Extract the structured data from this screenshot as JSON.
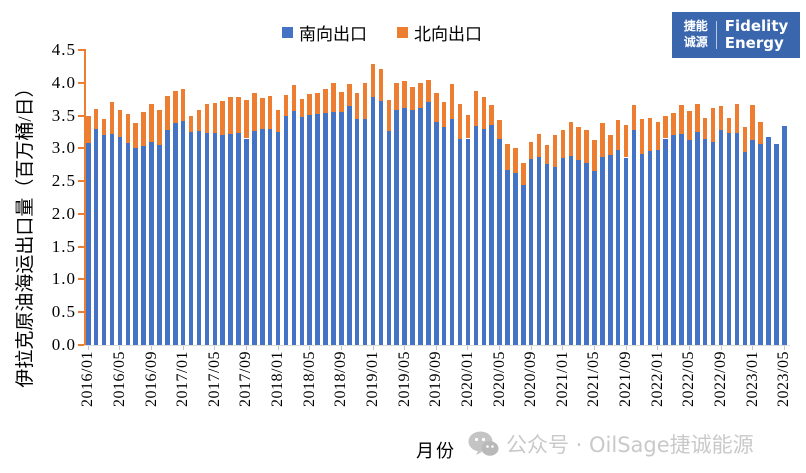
{
  "legend": {
    "south_label": "南向出口",
    "north_label": "北向出口"
  },
  "logo": {
    "cn_line1": "捷能",
    "cn_line2": "诚源",
    "en_line1": "Fidelity",
    "en_line2": "Energy",
    "bg_color": "#3A66AE"
  },
  "watermark": {
    "text": "公众号 · OilSage捷诚能源",
    "icon": "wechat-icon"
  },
  "chart_data": {
    "type": "bar",
    "stacked": true,
    "title": "",
    "xlabel": "月份",
    "ylabel": "伊拉克原油海运出口量（百万桶/日）",
    "ylim": [
      0,
      4.5
    ],
    "ytick_values": [
      4.5,
      4.0,
      3.5,
      3.0,
      2.5,
      2.0,
      1.5,
      1.0,
      0.5,
      0.0
    ],
    "ytick_labels": [
      "4.5",
      "4.0",
      "3.5",
      "3.0",
      "2.5",
      "2.0",
      "1.5",
      "1.0",
      "0.5",
      "0.0"
    ],
    "xtick_every": 4,
    "xtick_labels": [
      "2016/01",
      "2016/05",
      "2016/09",
      "2017/01",
      "2017/05",
      "2017/09",
      "2018/01",
      "2018/05",
      "2018/09",
      "2019/01",
      "2019/05",
      "2019/09",
      "2020/01",
      "2020/05",
      "2020/09",
      "2021/01",
      "2021/05",
      "2021/09",
      "2022/01",
      "2022/05",
      "2022/09",
      "2023/01",
      "2023/05"
    ],
    "grid": false,
    "legend_position": "top",
    "axis_color": "#ED7D31",
    "baseline_color": "#DCDCDC",
    "categories": [
      "2016/01",
      "2016/02",
      "2016/03",
      "2016/04",
      "2016/05",
      "2016/06",
      "2016/07",
      "2016/08",
      "2016/09",
      "2016/10",
      "2016/11",
      "2016/12",
      "2017/01",
      "2017/02",
      "2017/03",
      "2017/04",
      "2017/05",
      "2017/06",
      "2017/07",
      "2017/08",
      "2017/09",
      "2017/10",
      "2017/11",
      "2017/12",
      "2018/01",
      "2018/02",
      "2018/03",
      "2018/04",
      "2018/05",
      "2018/06",
      "2018/07",
      "2018/08",
      "2018/09",
      "2018/10",
      "2018/11",
      "2018/12",
      "2019/01",
      "2019/02",
      "2019/03",
      "2019/04",
      "2019/05",
      "2019/06",
      "2019/07",
      "2019/08",
      "2019/09",
      "2019/10",
      "2019/11",
      "2019/12",
      "2020/01",
      "2020/02",
      "2020/03",
      "2020/04",
      "2020/05",
      "2020/06",
      "2020/07",
      "2020/08",
      "2020/09",
      "2020/10",
      "2020/11",
      "2020/12",
      "2021/01",
      "2021/02",
      "2021/03",
      "2021/04",
      "2021/05",
      "2021/06",
      "2021/07",
      "2021/08",
      "2021/09",
      "2021/10",
      "2021/11",
      "2021/12",
      "2022/01",
      "2022/02",
      "2022/03",
      "2022/04",
      "2022/05",
      "2022/06",
      "2022/07",
      "2022/08",
      "2022/09",
      "2022/10",
      "2022/11",
      "2022/12",
      "2023/01",
      "2023/02",
      "2023/03",
      "2023/04",
      "2023/05"
    ],
    "series": [
      {
        "name": "南向出口",
        "color": "#4472C4",
        "values": [
          3.08,
          3.29,
          3.2,
          3.22,
          3.18,
          3.08,
          3.01,
          3.03,
          3.1,
          3.05,
          3.28,
          3.39,
          3.42,
          3.25,
          3.27,
          3.23,
          3.24,
          3.2,
          3.22,
          3.24,
          3.15,
          3.27,
          3.29,
          3.3,
          3.25,
          3.5,
          3.57,
          3.48,
          3.51,
          3.53,
          3.54,
          3.56,
          3.56,
          3.64,
          3.45,
          3.45,
          3.79,
          3.72,
          3.26,
          3.58,
          3.62,
          3.58,
          3.62,
          3.71,
          3.4,
          3.33,
          3.44,
          3.14,
          3.15,
          3.34,
          3.29,
          3.35,
          3.14,
          2.67,
          2.63,
          2.44,
          2.83,
          2.87,
          2.76,
          2.72,
          2.85,
          2.88,
          2.82,
          2.78,
          2.66,
          2.87,
          2.9,
          2.97,
          2.86,
          3.28,
          2.91,
          2.96,
          2.98,
          3.15,
          3.2,
          3.22,
          3.13,
          3.25,
          3.14,
          3.1,
          3.28,
          3.24,
          3.23,
          2.95,
          3.13,
          3.07,
          3.18,
          3.07,
          3.34
        ]
      },
      {
        "name": "北向出口",
        "color": "#ED7D31",
        "values": [
          0.42,
          0.31,
          0.25,
          0.48,
          0.4,
          0.44,
          0.37,
          0.53,
          0.58,
          0.54,
          0.52,
          0.48,
          0.48,
          0.24,
          0.31,
          0.44,
          0.45,
          0.52,
          0.56,
          0.54,
          0.59,
          0.58,
          0.48,
          0.5,
          0.34,
          0.31,
          0.39,
          0.28,
          0.32,
          0.32,
          0.36,
          0.44,
          0.3,
          0.34,
          0.4,
          0.55,
          0.49,
          0.49,
          0.47,
          0.41,
          0.4,
          0.36,
          0.38,
          0.34,
          0.45,
          0.38,
          0.54,
          0.53,
          0.36,
          0.54,
          0.49,
          0.31,
          0.29,
          0.39,
          0.38,
          0.33,
          0.27,
          0.35,
          0.29,
          0.48,
          0.43,
          0.52,
          0.51,
          0.5,
          0.46,
          0.51,
          0.3,
          0.46,
          0.49,
          0.38,
          0.53,
          0.5,
          0.42,
          0.34,
          0.34,
          0.44,
          0.44,
          0.43,
          0.32,
          0.51,
          0.36,
          0.23,
          0.44,
          0.38,
          0.53,
          0.33,
          0.0,
          0.0,
          0.0
        ]
      }
    ]
  }
}
